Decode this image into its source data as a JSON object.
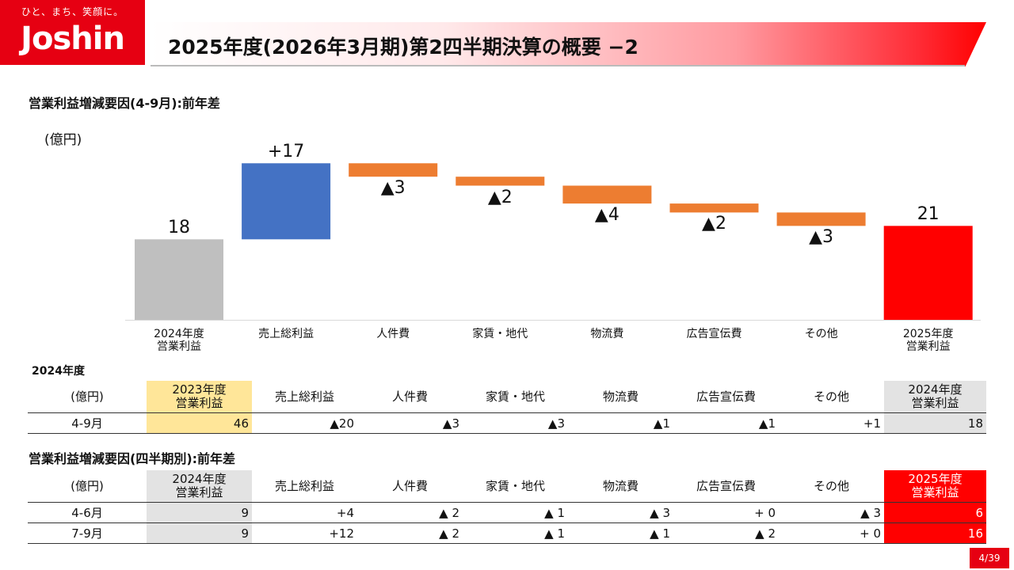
{
  "logo": {
    "tagline": "ひと、まち、笑顔に。",
    "name": "Joshin"
  },
  "title": "2025年度(2026年3月期)第2四半期決算の概要 −2",
  "section1_title": "営業利益増減要因(4-9月):前年差",
  "unit_label": "(億円)",
  "colors": {
    "base_prev": "#bfbfbf",
    "increase": "#4472c4",
    "decrease": "#ed7d31",
    "base_curr": "#ff0000"
  },
  "chart_data": {
    "type": "bar",
    "subtype": "waterfall",
    "title": "営業利益増減要因(4-9月):前年差",
    "ylabel": "(億円)",
    "categories": [
      "2024年度\n営業利益",
      "売上総利益",
      "人件費",
      "家賃・地代",
      "物流費",
      "広告宣伝費",
      "その他",
      "2025年度\n営業利益"
    ],
    "kinds": [
      "total",
      "increase",
      "decrease",
      "decrease",
      "decrease",
      "decrease",
      "decrease",
      "total"
    ],
    "values": [
      18,
      17,
      -3,
      -2,
      -4,
      -2,
      -3,
      21
    ],
    "data_labels": [
      "18",
      "+17",
      "▲3",
      "▲2",
      "▲4",
      "▲2",
      "▲3",
      "21"
    ],
    "ylim": [
      0,
      40
    ]
  },
  "table1": {
    "year_label": "2024年度",
    "headers": [
      "(億円)",
      "2023年度\n営業利益",
      "売上総利益",
      "人件費",
      "家賃・地代",
      "物流費",
      "広告宣伝費",
      "その他",
      "2024年度\n営業利益"
    ],
    "rows": [
      {
        "label": "4-9月",
        "cells": [
          "46",
          "▲20",
          "▲3",
          "▲3",
          "▲1",
          "▲1",
          "+1",
          "18"
        ]
      }
    ]
  },
  "section2_title": "営業利益増減要因(四半期別):前年差",
  "table2": {
    "headers": [
      "(億円)",
      "2024年度\n営業利益",
      "売上総利益",
      "人件費",
      "家賃・地代",
      "物流費",
      "広告宣伝費",
      "その他",
      "2025年度\n営業利益"
    ],
    "rows": [
      {
        "label": "4-6月",
        "cells": [
          "9",
          "+4",
          "▲ 2",
          "▲ 1",
          "▲ 3",
          "+ 0",
          "▲ 3",
          "6"
        ]
      },
      {
        "label": "7-9月",
        "cells": [
          "9",
          "+12",
          "▲ 2",
          "▲ 1",
          "▲ 1",
          "▲ 2",
          "+ 0",
          "16"
        ]
      }
    ]
  },
  "page_number": "4/39"
}
